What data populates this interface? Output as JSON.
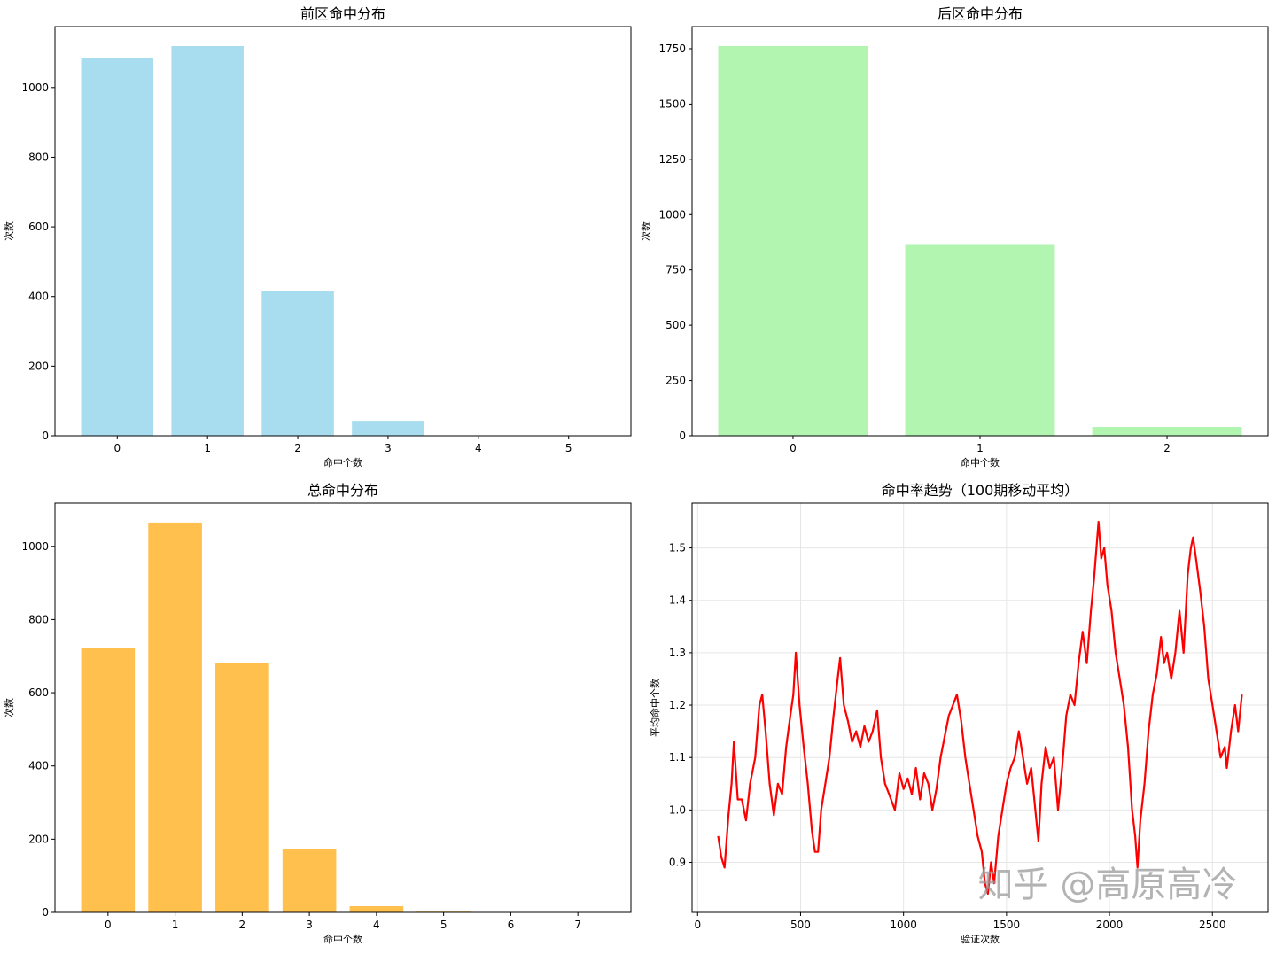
{
  "watermark": "知乎 @高原高冷",
  "chart_data": [
    {
      "type": "bar",
      "title": "前区命中分布",
      "xlabel": "命中个数",
      "ylabel": "次数",
      "categories": [
        "0",
        "1",
        "2",
        "3",
        "4",
        "5"
      ],
      "values": [
        1084,
        1119,
        416,
        43,
        1,
        0
      ],
      "ylim": [
        0,
        1175
      ],
      "yticks": [
        0,
        200,
        400,
        600,
        800,
        1000
      ],
      "color": "#a8dcef",
      "grid": false
    },
    {
      "type": "bar",
      "title": "后区命中分布",
      "xlabel": "命中个数",
      "ylabel": "次数",
      "categories": [
        "0",
        "1",
        "2"
      ],
      "values": [
        1762,
        863,
        40
      ],
      "ylim": [
        0,
        1850
      ],
      "yticks": [
        0,
        250,
        500,
        750,
        1000,
        1250,
        1500,
        1750
      ],
      "color": "#b1f5b1",
      "grid": false
    },
    {
      "type": "bar",
      "title": "总命中分布",
      "xlabel": "命中个数",
      "ylabel": "次数",
      "categories": [
        "0",
        "1",
        "2",
        "3",
        "4",
        "5",
        "6",
        "7"
      ],
      "values": [
        722,
        1065,
        680,
        172,
        17,
        2,
        0,
        0
      ],
      "ylim": [
        0,
        1118
      ],
      "yticks": [
        0,
        200,
        400,
        600,
        800,
        1000
      ],
      "color": "#ffc04d",
      "grid": false
    },
    {
      "type": "line",
      "title": "命中率趋势（100期移动平均）",
      "xlabel": "验证次数",
      "ylabel": "平均命中个数",
      "xlim": [
        -27,
        2770
      ],
      "ylim": [
        0.8045,
        1.5855
      ],
      "xticks": [
        0,
        500,
        1000,
        1500,
        2000,
        2500
      ],
      "yticks": [
        0.8,
        0.9,
        1.0,
        1.1,
        1.2,
        1.3,
        1.4,
        1.5
      ],
      "color": "#ff0000",
      "grid": true,
      "x": [
        100,
        115,
        131,
        150,
        165,
        176,
        195,
        215,
        235,
        255,
        280,
        300,
        314,
        330,
        350,
        370,
        390,
        410,
        430,
        450,
        465,
        477,
        495,
        515,
        535,
        555,
        570,
        585,
        600,
        620,
        640,
        660,
        680,
        692,
        710,
        730,
        750,
        770,
        790,
        810,
        830,
        850,
        872,
        890,
        910,
        930,
        958,
        980,
        1000,
        1020,
        1040,
        1060,
        1080,
        1100,
        1120,
        1140,
        1160,
        1180,
        1200,
        1220,
        1240,
        1259,
        1280,
        1300,
        1320,
        1340,
        1360,
        1380,
        1395,
        1410,
        1425,
        1440,
        1460,
        1480,
        1500,
        1520,
        1540,
        1560,
        1580,
        1600,
        1620,
        1640,
        1655,
        1670,
        1690,
        1710,
        1730,
        1750,
        1770,
        1790,
        1810,
        1830,
        1850,
        1870,
        1890,
        1910,
        1925,
        1947,
        1960,
        1975,
        1990,
        2010,
        2030,
        2050,
        2070,
        2090,
        2110,
        2125,
        2136,
        2150,
        2170,
        2190,
        2210,
        2230,
        2250,
        2265,
        2280,
        2300,
        2320,
        2340,
        2360,
        2380,
        2395,
        2406,
        2420,
        2440,
        2460,
        2480,
        2500,
        2520,
        2540,
        2560,
        2570,
        2590,
        2610,
        2625,
        2643
      ],
      "y": [
        0.95,
        0.91,
        0.89,
        0.99,
        1.05,
        1.13,
        1.02,
        1.02,
        0.98,
        1.05,
        1.1,
        1.2,
        1.22,
        1.15,
        1.05,
        0.99,
        1.05,
        1.03,
        1.12,
        1.18,
        1.22,
        1.3,
        1.2,
        1.12,
        1.05,
        0.96,
        0.92,
        0.92,
        1.0,
        1.05,
        1.1,
        1.18,
        1.25,
        1.29,
        1.2,
        1.17,
        1.13,
        1.15,
        1.12,
        1.16,
        1.13,
        1.15,
        1.19,
        1.1,
        1.05,
        1.03,
        1.0,
        1.07,
        1.04,
        1.06,
        1.03,
        1.08,
        1.02,
        1.07,
        1.05,
        1.0,
        1.04,
        1.1,
        1.14,
        1.18,
        1.2,
        1.22,
        1.17,
        1.1,
        1.05,
        1.0,
        0.95,
        0.92,
        0.86,
        0.84,
        0.9,
        0.86,
        0.95,
        1.0,
        1.05,
        1.08,
        1.1,
        1.15,
        1.1,
        1.05,
        1.08,
        1.0,
        0.94,
        1.05,
        1.12,
        1.08,
        1.1,
        1.0,
        1.08,
        1.18,
        1.22,
        1.2,
        1.28,
        1.34,
        1.28,
        1.38,
        1.44,
        1.55,
        1.48,
        1.5,
        1.43,
        1.38,
        1.3,
        1.25,
        1.2,
        1.12,
        1.0,
        0.95,
        0.89,
        0.98,
        1.05,
        1.15,
        1.22,
        1.26,
        1.33,
        1.28,
        1.3,
        1.25,
        1.3,
        1.38,
        1.3,
        1.45,
        1.5,
        1.52,
        1.48,
        1.42,
        1.35,
        1.25,
        1.2,
        1.15,
        1.1,
        1.12,
        1.08,
        1.15,
        1.2,
        1.15,
        1.22
      ]
    }
  ]
}
